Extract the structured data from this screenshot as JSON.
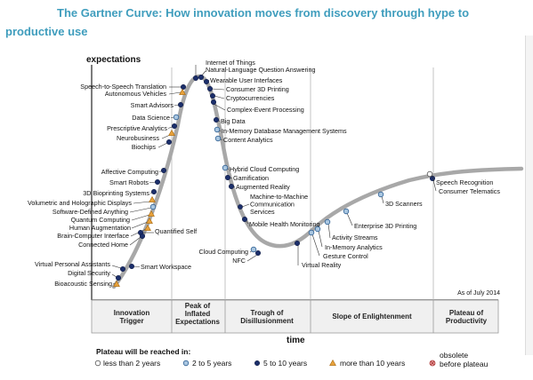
{
  "title": "The Gartner Curve: How innovation moves from discovery through hype to productive use",
  "chart_data": {
    "type": "line",
    "title": "The Gartner Curve: How innovation moves from discovery through hype to productive use",
    "ylabel": "expectations",
    "xlabel": "time",
    "as_of": "As of July 2014",
    "phases": [
      "Innovation Trigger",
      "Peak of Inflated Expectations",
      "Trough of Disillusionment",
      "Slope of Enlightenment",
      "Plateau of Productivity"
    ],
    "legend": {
      "title": "Plateau will be reached in:",
      "items": [
        {
          "key": "lt2",
          "label": "less than 2 years",
          "marker": "circle-open",
          "color": "#ffffff"
        },
        {
          "key": "2to5",
          "label": "2 to 5 years",
          "marker": "circle-light",
          "color": "#a9c6e0"
        },
        {
          "key": "5to10",
          "label": "5 to 10 years",
          "marker": "circle-dark",
          "color": "#1c2f6b"
        },
        {
          "key": "gt10",
          "label": "more than 10 years",
          "marker": "triangle",
          "color": "#e8a23c"
        },
        {
          "key": "obs",
          "label_line1": "obsolete",
          "label_line2": "before plateau",
          "marker": "crossed-circle",
          "color": "#e6a0a0"
        }
      ]
    },
    "technologies": [
      {
        "name": "Internet of Things",
        "cat": "5to10"
      },
      {
        "name": "Natural-Language Question Answering",
        "cat": "5to10"
      },
      {
        "name": "Wearable User Interfaces",
        "cat": "5to10"
      },
      {
        "name": "Consumer 3D Printing",
        "cat": "5to10"
      },
      {
        "name": "Cryptocurrencies",
        "cat": "5to10"
      },
      {
        "name": "Complex-Event Processing",
        "cat": "5to10"
      },
      {
        "name": "Big Data",
        "cat": "5to10"
      },
      {
        "name": "In-Memory Database Management Systems",
        "cat": "2to5"
      },
      {
        "name": "Content Analytics",
        "cat": "2to5"
      },
      {
        "name": "Speech-to-Speech Translation",
        "cat": "5to10"
      },
      {
        "name": "Autonomous Vehicles",
        "cat": "gt10"
      },
      {
        "name": "Smart Advisors",
        "cat": "5to10"
      },
      {
        "name": "Data Science",
        "cat": "2to5"
      },
      {
        "name": "Prescriptive Analytics",
        "cat": "5to10"
      },
      {
        "name": "Neurobusiness",
        "cat": "gt10"
      },
      {
        "name": "Biochips",
        "cat": "5to10"
      },
      {
        "name": "Affective Computing",
        "cat": "5to10"
      },
      {
        "name": "Smart Robots",
        "cat": "5to10"
      },
      {
        "name": "3D Bioprinting Systems",
        "cat": "5to10"
      },
      {
        "name": "Volumetric and Holographic Displays",
        "cat": "gt10"
      },
      {
        "name": "Software-Defined Anything",
        "cat": "2to5"
      },
      {
        "name": "Quantum Computing",
        "cat": "gt10"
      },
      {
        "name": "Human Augmentation",
        "cat": "gt10"
      },
      {
        "name": "Brain-Computer Interface",
        "cat": "gt10"
      },
      {
        "name": "Quantified Self",
        "cat": "5to10"
      },
      {
        "name": "Connected Home",
        "cat": "5to10"
      },
      {
        "name": "Smart Workspace",
        "cat": "5to10"
      },
      {
        "name": "Virtual Personal Assistants",
        "cat": "5to10"
      },
      {
        "name": "Digital Security",
        "cat": "5to10"
      },
      {
        "name": "Bioacoustic Sensing",
        "cat": "gt10"
      },
      {
        "name": "Hybrid Cloud Computing",
        "cat": "2to5"
      },
      {
        "name": "Gamification",
        "cat": "5to10"
      },
      {
        "name": "Augmented Reality",
        "cat": "5to10"
      },
      {
        "name": "Machine-to-Machine Communication Services",
        "cat": "5to10"
      },
      {
        "name": "Mobile Health Monitoring",
        "cat": "5to10"
      },
      {
        "name": "Cloud Computing",
        "cat": "2to5"
      },
      {
        "name": "NFC",
        "cat": "5to10"
      },
      {
        "name": "Virtual Reality",
        "cat": "5to10"
      },
      {
        "name": "Gesture Control",
        "cat": "2to5"
      },
      {
        "name": "In-Memory Analytics",
        "cat": "2to5"
      },
      {
        "name": "Activity Streams",
        "cat": "2to5"
      },
      {
        "name": "Enterprise 3D Printing",
        "cat": "2to5"
      },
      {
        "name": "3D Scanners",
        "cat": "2to5"
      },
      {
        "name": "Consumer Telematics",
        "cat": "5to10"
      },
      {
        "name": "Speech Recognition",
        "cat": "lt2"
      }
    ]
  }
}
